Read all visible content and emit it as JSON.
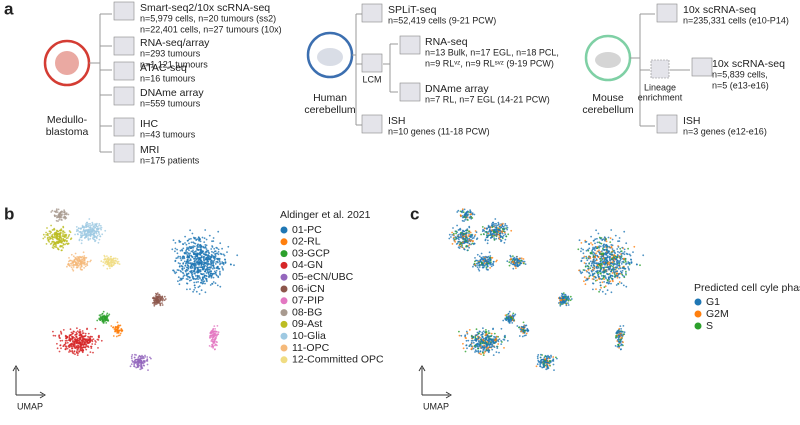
{
  "panel_a": {
    "label": "a",
    "medulloblastoma": {
      "name": [
        "Medullo-",
        "blastoma"
      ],
      "items": [
        {
          "title": "Smart-seq2/10x scRNA-seq",
          "lines": [
            "n=5,979 cells, n=20 tumours (ss2)",
            "n=22,401 cells, n=27 tumours (10x)"
          ]
        },
        {
          "title": "RNA-seq/array",
          "lines": [
            "n=293 tumours",
            "n=1,121 tumours"
          ]
        },
        {
          "title": "ATAC-seq",
          "lines": [
            "n=16 tumours"
          ]
        },
        {
          "title": "DNAme array",
          "lines": [
            "n=559 tumours"
          ]
        },
        {
          "title": "IHC",
          "lines": [
            "n=43 tumours"
          ]
        },
        {
          "title": "MRI",
          "lines": [
            "n=175 patients"
          ]
        }
      ]
    },
    "human": {
      "name": [
        "Human",
        "cerebellum"
      ],
      "lcm": "LCM",
      "items": [
        {
          "title": "SPLiT-seq",
          "lines": [
            "n=52,419 cells (9-21 PCW)"
          ]
        },
        {
          "title": "RNA-seq",
          "lines": [
            "n=13 Bulk, n=17 EGL, n=18 PCL,",
            "n=9 RLᵛᶻ, n=9 RLˢᵛᶻ (9-19 PCW)"
          ]
        },
        {
          "title": "DNAme array",
          "lines": [
            "n=7 RL, n=7 EGL (14-21 PCW)"
          ]
        },
        {
          "title": "ISH",
          "lines": [
            "n=10 genes (11-18 PCW)"
          ]
        }
      ]
    },
    "mouse": {
      "name": [
        "Mouse",
        "cerebellum"
      ],
      "lineage": [
        "Lineage",
        "enrichment"
      ],
      "items": [
        {
          "title": "10x scRNA-seq",
          "lines": [
            "n=235,331 cells (e10-P14)"
          ]
        },
        {
          "title": "10x scRNA-seq",
          "lines": [
            "n=5,839 cells,",
            "n=5 (e13-e16)"
          ]
        },
        {
          "title": "ISH",
          "lines": [
            "n=3 genes (e12-e16)"
          ]
        }
      ]
    }
  },
  "panel_b": {
    "label": "b",
    "legend_title": "Aldinger et al. 2021",
    "axis_label": "UMAP",
    "legend": [
      {
        "name": "01-PC",
        "color": "#1f77b4"
      },
      {
        "name": "02-RL",
        "color": "#ff7f0e"
      },
      {
        "name": "03-GCP",
        "color": "#2ca02c"
      },
      {
        "name": "04-GN",
        "color": "#d62728"
      },
      {
        "name": "05-eCN/UBC",
        "color": "#9467bd"
      },
      {
        "name": "06-iCN",
        "color": "#8c564b"
      },
      {
        "name": "07-PIP",
        "color": "#e377c2"
      },
      {
        "name": "08-BG",
        "color": "#a89a8f"
      },
      {
        "name": "09-Ast",
        "color": "#bcbd22"
      },
      {
        "name": "10-Glia",
        "color": "#9ec9e2"
      },
      {
        "name": "11-OPC",
        "color": "#f5b97a"
      },
      {
        "name": "12-Committed OPC",
        "color": "#f0dc82"
      }
    ]
  },
  "panel_c": {
    "label": "c",
    "legend_title": "Predicted cell cyle phase",
    "axis_label": "UMAP",
    "legend": [
      {
        "name": "G1",
        "color": "#1f77b4"
      },
      {
        "name": "G2M",
        "color": "#ff7f0e"
      },
      {
        "name": "S",
        "color": "#2ca02c"
      }
    ]
  }
}
